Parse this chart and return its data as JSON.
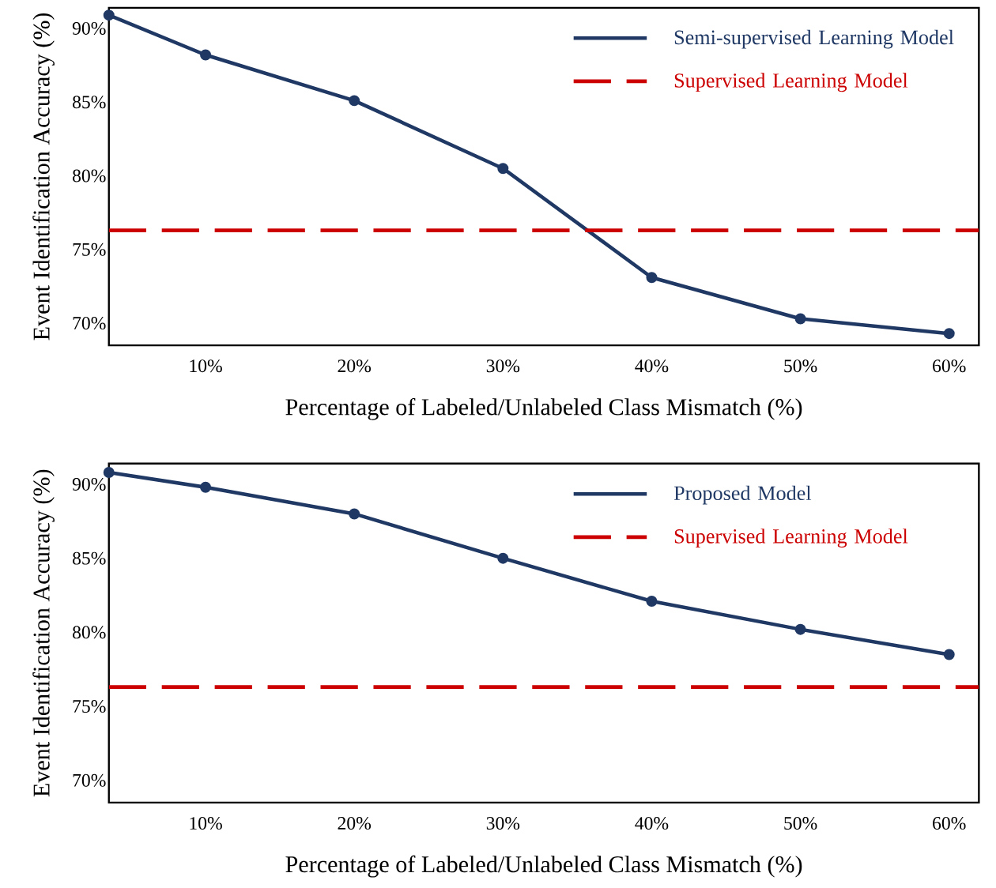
{
  "chart_data": [
    {
      "type": "line",
      "xlabel": "Percentage of Labeled/Unlabeled Class Mismatch (%)",
      "ylabel": "Event Identification Accuracy (%)",
      "x": [
        3.5,
        10,
        20,
        30,
        40,
        50,
        60
      ],
      "series": [
        {
          "name": "Semi-supervised Learning Model",
          "color": "#1f3864",
          "values": [
            90.9,
            88.2,
            85.1,
            80.5,
            73.1,
            70.3,
            69.3
          ]
        }
      ],
      "xlim": [
        3.5,
        62
      ],
      "ylim": [
        68.5,
        91.4
      ],
      "xticks": [
        {
          "value": 10,
          "label": "10%"
        },
        {
          "value": 20,
          "label": "20%"
        },
        {
          "value": 30,
          "label": "30%"
        },
        {
          "value": 40,
          "label": "40%"
        },
        {
          "value": 50,
          "label": "50%"
        },
        {
          "value": 60,
          "label": "60%"
        }
      ],
      "yticks": [
        {
          "value": 70,
          "label": "70%"
        },
        {
          "value": 75,
          "label": "75%"
        },
        {
          "value": 80,
          "label": "80%"
        },
        {
          "value": 85,
          "label": "85%"
        },
        {
          "value": 90,
          "label": "90%"
        }
      ],
      "ref_lines": [
        {
          "axis": "y",
          "value": 76.3,
          "label": "Supervised Learning Model",
          "color": "#cc0000",
          "line_style": "dashed"
        }
      ],
      "legend": "top right",
      "marker": "circle",
      "line_style": "solid"
    },
    {
      "type": "line",
      "xlabel": "Percentage of Labeled/Unlabeled Class Mismatch (%)",
      "ylabel": "Event Identification Accuracy (%)",
      "x": [
        3.5,
        10,
        20,
        30,
        40,
        50,
        60
      ],
      "series": [
        {
          "name": "Proposed Model",
          "color": "#1f3864",
          "values": [
            90.8,
            89.8,
            88.0,
            85.0,
            82.1,
            80.2,
            78.5
          ]
        }
      ],
      "xlim": [
        3.5,
        62
      ],
      "ylim": [
        68.5,
        91.4
      ],
      "xticks": [
        {
          "value": 10,
          "label": "10%"
        },
        {
          "value": 20,
          "label": "20%"
        },
        {
          "value": 30,
          "label": "30%"
        },
        {
          "value": 40,
          "label": "40%"
        },
        {
          "value": 50,
          "label": "50%"
        },
        {
          "value": 60,
          "label": "60%"
        }
      ],
      "yticks": [
        {
          "value": 70,
          "label": "70%"
        },
        {
          "value": 75,
          "label": "75%"
        },
        {
          "value": 80,
          "label": "80%"
        },
        {
          "value": 85,
          "label": "85%"
        },
        {
          "value": 90,
          "label": "90%"
        }
      ],
      "ref_lines": [
        {
          "axis": "y",
          "value": 76.3,
          "label": "Supervised Learning Model",
          "color": "#cc0000",
          "line_style": "dashed"
        }
      ],
      "legend": "top right",
      "marker": "circle",
      "line_style": "solid"
    }
  ]
}
